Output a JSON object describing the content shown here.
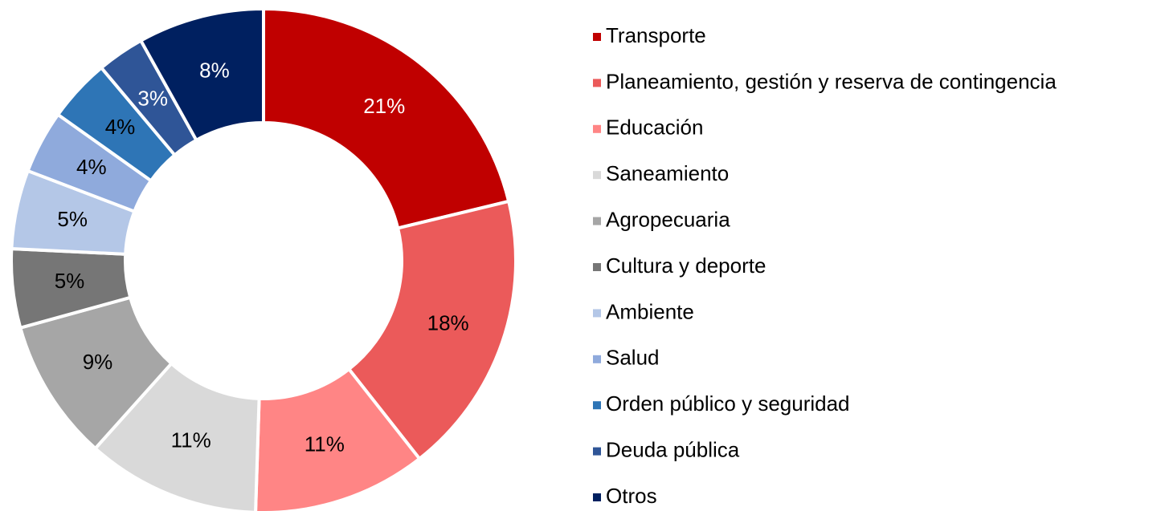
{
  "chart_data": {
    "type": "donut",
    "categories": [
      "Transporte",
      "Planeamiento, gestión y reserva de contingencia",
      "Educación",
      "Saneamiento",
      "Agropecuaria",
      "Cultura y deporte",
      "Ambiente",
      "Salud",
      "Orden público y seguridad",
      "Deuda pública",
      "Otros"
    ],
    "values": [
      21,
      18,
      11,
      11,
      9,
      5,
      5,
      4,
      4,
      3,
      8
    ],
    "value_labels": [
      "21%",
      "18%",
      "11%",
      "11%",
      "9%",
      "5%",
      "5%",
      "4%",
      "4%",
      "3%",
      "8%"
    ],
    "colors": [
      "#c00000",
      "#eb5a5a",
      "#ff8585",
      "#d9d9d9",
      "#a6a6a6",
      "#767676",
      "#b4c7e7",
      "#8faadc",
      "#2e75b6",
      "#2f5597",
      "#002060"
    ],
    "legend": "right"
  }
}
